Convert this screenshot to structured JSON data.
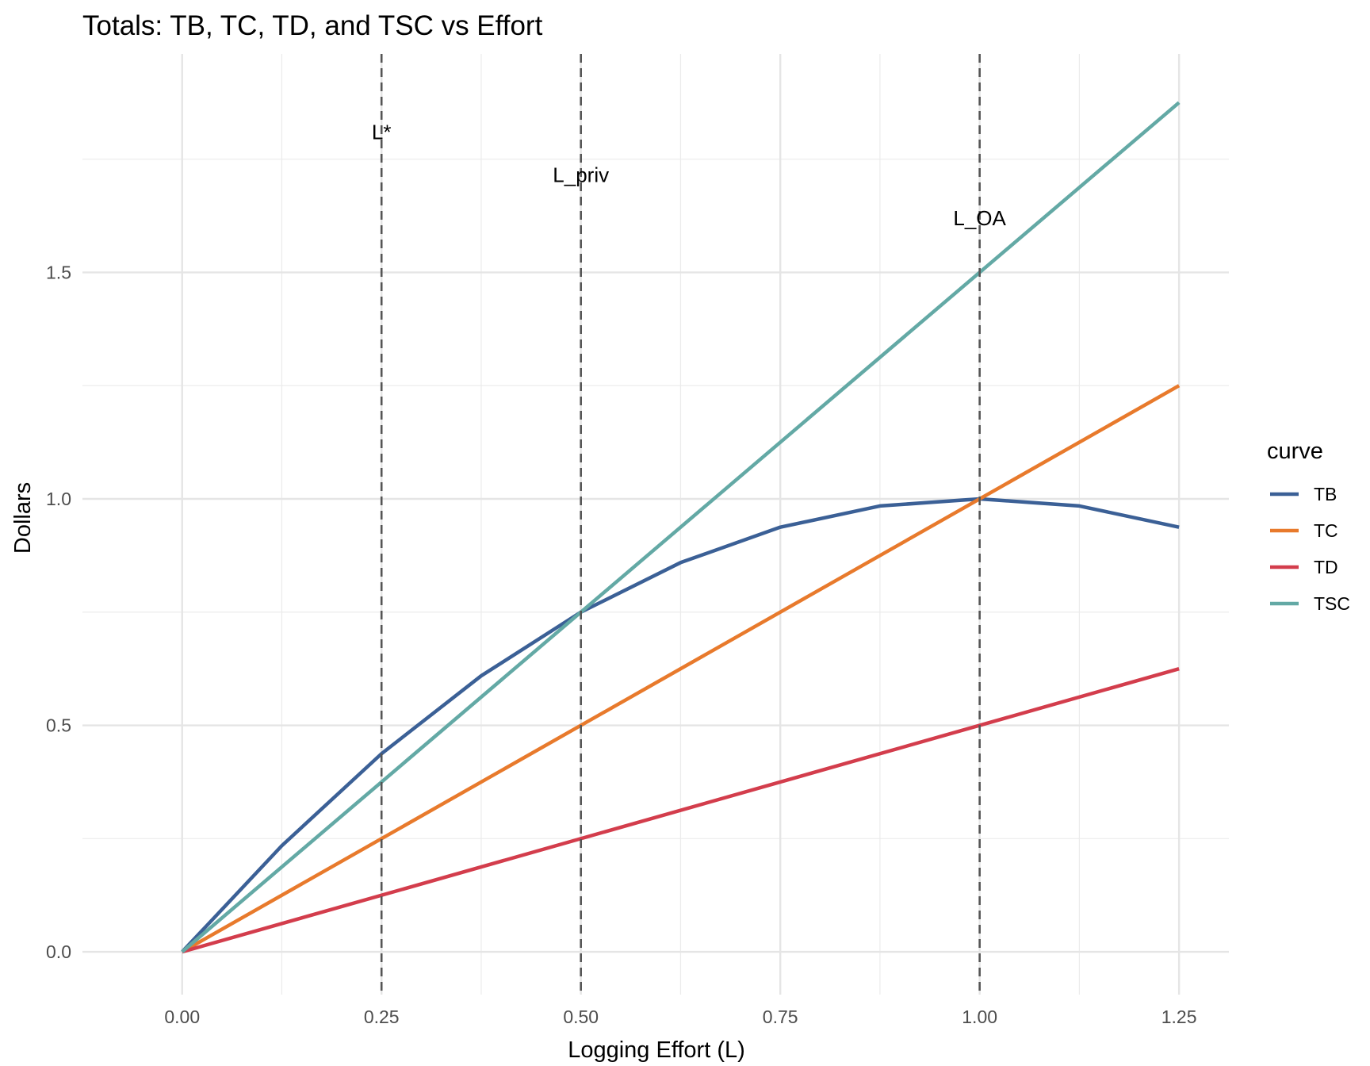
{
  "chart_data": {
    "type": "line",
    "title": "Totals: TB, TC, TD, and TSC vs Effort",
    "xlabel": "Logging Effort (L)",
    "ylabel": "Dollars",
    "xlim": [
      -0.125,
      1.3125
    ],
    "ylim": [
      -0.0944,
      1.9823
    ],
    "x_ticks": [
      0.0,
      0.25,
      0.5,
      0.75,
      1.0,
      1.25
    ],
    "x_tick_labels": [
      "0.00",
      "0.25",
      "0.50",
      "0.75",
      "1.00",
      "1.25"
    ],
    "y_ticks": [
      0.0,
      0.5,
      1.0,
      1.5
    ],
    "y_tick_labels": [
      "0.0",
      "0.5",
      "1.0",
      "1.5"
    ],
    "grid": true,
    "legend": {
      "title": "curve",
      "placement": "right"
    },
    "series": [
      {
        "name": "TB",
        "color": "#3b6096",
        "x": [
          0,
          0.125,
          0.25,
          0.375,
          0.5,
          0.625,
          0.75,
          0.875,
          1.0,
          1.125,
          1.25
        ],
        "y": [
          0,
          0.234375,
          0.4375,
          0.609375,
          0.75,
          0.859375,
          0.9375,
          0.984375,
          1.0,
          0.984375,
          0.9375
        ]
      },
      {
        "name": "TC",
        "color": "#e87a2c",
        "x": [
          0,
          1.25
        ],
        "y": [
          0,
          1.25
        ]
      },
      {
        "name": "TD",
        "color": "#d33d4c",
        "x": [
          0,
          1.25
        ],
        "y": [
          0,
          0.625
        ]
      },
      {
        "name": "TSC",
        "color": "#63a9a5",
        "x": [
          0,
          1.25
        ],
        "y": [
          0,
          1.875
        ]
      }
    ],
    "vlines": [
      {
        "label": "L*",
        "x": 0.25,
        "label_y": 1.81
      },
      {
        "label": "L_priv",
        "x": 0.5,
        "label_y": 1.715
      },
      {
        "label": "L_OA",
        "x": 1.0,
        "label_y": 1.62
      }
    ]
  }
}
